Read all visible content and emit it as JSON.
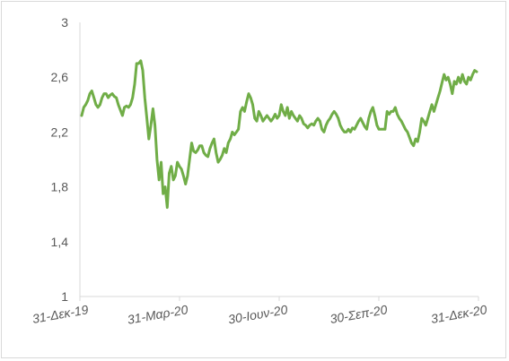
{
  "chart_data": {
    "type": "line",
    "title": "",
    "xlabel": "",
    "ylabel": "",
    "ylim": [
      1,
      3
    ],
    "y_ticks": [
      1,
      1.4,
      1.8,
      2.2,
      2.6,
      3
    ],
    "y_tick_labels": [
      "1",
      "1,4",
      "1,8",
      "2,2",
      "2,6",
      "3"
    ],
    "x_tick_labels": [
      "31-Δεκ-19",
      "31-Μαρ-20",
      "30-Ιουν-20",
      "30-Σεπ-20",
      "31-Δεκ-20"
    ],
    "grid": false,
    "legend": "none",
    "series": [
      {
        "color": "#70ad47",
        "values": [
          2.32,
          2.38,
          2.4,
          2.43,
          2.48,
          2.5,
          2.45,
          2.4,
          2.38,
          2.4,
          2.45,
          2.48,
          2.48,
          2.45,
          2.47,
          2.48,
          2.46,
          2.45,
          2.4,
          2.36,
          2.32,
          2.38,
          2.39,
          2.38,
          2.4,
          2.45,
          2.55,
          2.7,
          2.7,
          2.72,
          2.65,
          2.45,
          2.3,
          2.15,
          2.25,
          2.37,
          2.25,
          2.0,
          1.85,
          1.98,
          1.75,
          1.8,
          1.65,
          1.9,
          1.95,
          1.85,
          1.88,
          1.98,
          1.95,
          1.93,
          1.88,
          1.82,
          1.88,
          2.0,
          2.12,
          2.06,
          2.05,
          2.07,
          2.1,
          2.1,
          2.05,
          2.03,
          2.02,
          2.08,
          2.12,
          2.15,
          2.05,
          1.98,
          2.0,
          2.03,
          2.08,
          2.05,
          2.12,
          2.15,
          2.2,
          2.18,
          2.2,
          2.22,
          2.35,
          2.38,
          2.35,
          2.42,
          2.48,
          2.45,
          2.4,
          2.3,
          2.28,
          2.35,
          2.32,
          2.28,
          2.3,
          2.32,
          2.3,
          2.28,
          2.3,
          2.33,
          2.3,
          2.32,
          2.4,
          2.35,
          2.32,
          2.38,
          2.3,
          2.35,
          2.32,
          2.3,
          2.28,
          2.32,
          2.3,
          2.26,
          2.25,
          2.23,
          2.25,
          2.26,
          2.25,
          2.28,
          2.3,
          2.28,
          2.22,
          2.2,
          2.25,
          2.28,
          2.3,
          2.33,
          2.35,
          2.33,
          2.3,
          2.25,
          2.22,
          2.2,
          2.2,
          2.22,
          2.2,
          2.23,
          2.22,
          2.25,
          2.28,
          2.3,
          2.27,
          2.24,
          2.22,
          2.3,
          2.35,
          2.38,
          2.32,
          2.25,
          2.22,
          2.22,
          2.22,
          2.22,
          2.35,
          2.33,
          2.35,
          2.35,
          2.38,
          2.33,
          2.3,
          2.28,
          2.25,
          2.22,
          2.2,
          2.16,
          2.12,
          2.1,
          2.15,
          2.13,
          2.2,
          2.3,
          2.28,
          2.25,
          2.3,
          2.35,
          2.4,
          2.35,
          2.4,
          2.45,
          2.5,
          2.56,
          2.62,
          2.58,
          2.6,
          2.55,
          2.48,
          2.57,
          2.55,
          2.6,
          2.56,
          2.62,
          2.57,
          2.55,
          2.6,
          2.58,
          2.62,
          2.65,
          2.64
        ]
      }
    ]
  }
}
